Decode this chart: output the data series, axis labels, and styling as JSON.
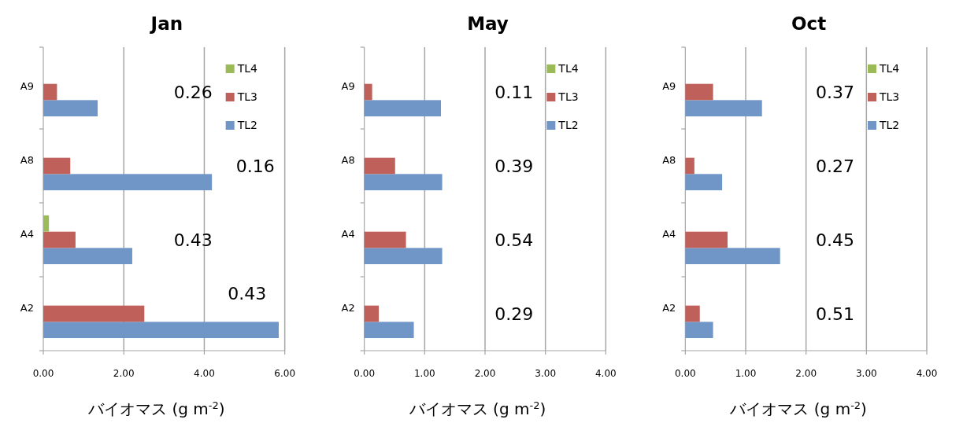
{
  "chart_data": [
    {
      "type": "bar",
      "orientation": "horizontal",
      "title": "Jan",
      "xlabel": "バイオマス (g m$^{-2}$)",
      "categories": [
        "A9",
        "A8",
        "A4",
        "A2"
      ],
      "series": [
        {
          "name": "TL2",
          "color": "#7096c8",
          "values": [
            1.35,
            4.19,
            2.21,
            5.85
          ]
        },
        {
          "name": "TL3",
          "color": "#bf605b",
          "values": [
            0.34,
            0.67,
            0.8,
            2.51
          ]
        },
        {
          "name": "TL4",
          "color": "#9bbb59",
          "values": [
            0,
            0,
            0.14,
            0
          ]
        }
      ],
      "xlim": [
        0,
        6
      ],
      "xticks": [
        {
          "value": 0,
          "label": "0.00"
        },
        {
          "value": 2,
          "label": "2.00"
        },
        {
          "value": 4,
          "label": "4.00"
        },
        {
          "value": 6,
          "label": "6.00"
        }
      ],
      "grid": "x",
      "legend": "top right",
      "annotations": [
        "0.26",
        "0.16",
        "0.43",
        "0.43"
      ]
    },
    {
      "type": "bar",
      "orientation": "horizontal",
      "title": "May",
      "xlabel": "バイオマス (g m$^{-2}$)",
      "categories": [
        "A9",
        "A8",
        "A4",
        "A2"
      ],
      "series": [
        {
          "name": "TL2",
          "color": "#7096c8",
          "values": [
            1.27,
            1.29,
            1.29,
            0.82
          ]
        },
        {
          "name": "TL3",
          "color": "#bf605b",
          "values": [
            0.13,
            0.51,
            0.69,
            0.24
          ]
        },
        {
          "name": "TL4",
          "color": "#9bbb59",
          "values": [
            0,
            0,
            0,
            0
          ]
        }
      ],
      "xlim": [
        0,
        4
      ],
      "xticks": [
        {
          "value": 0,
          "label": "0.00"
        },
        {
          "value": 1,
          "label": "1.00"
        },
        {
          "value": 2,
          "label": "2.00"
        },
        {
          "value": 3,
          "label": "3.00"
        },
        {
          "value": 4,
          "label": "4.00"
        }
      ],
      "grid": "x",
      "legend": "top right",
      "annotations": [
        "0.11",
        "0.39",
        "0.54",
        "0.29"
      ]
    },
    {
      "type": "bar",
      "orientation": "horizontal",
      "title": "Oct",
      "xlabel": "バイオマス (g m$^{-2}$)",
      "categories": [
        "A9",
        "A8",
        "A4",
        "A2"
      ],
      "series": [
        {
          "name": "TL2",
          "color": "#7096c8",
          "values": [
            1.27,
            0.61,
            1.57,
            0.46
          ]
        },
        {
          "name": "TL3",
          "color": "#bf605b",
          "values": [
            0.46,
            0.15,
            0.7,
            0.24
          ]
        },
        {
          "name": "TL4",
          "color": "#9bbb59",
          "values": [
            0,
            0,
            0,
            0
          ]
        }
      ],
      "xlim": [
        0,
        4
      ],
      "xticks": [
        {
          "value": 0,
          "label": "0.00"
        },
        {
          "value": 1,
          "label": "1.00"
        },
        {
          "value": 2,
          "label": "2.00"
        },
        {
          "value": 3,
          "label": "3.00"
        },
        {
          "value": 4,
          "label": "4.00"
        }
      ],
      "grid": "x",
      "legend": "top right",
      "annotations": [
        "0.37",
        "0.27",
        "0.45",
        "0.51"
      ]
    }
  ]
}
